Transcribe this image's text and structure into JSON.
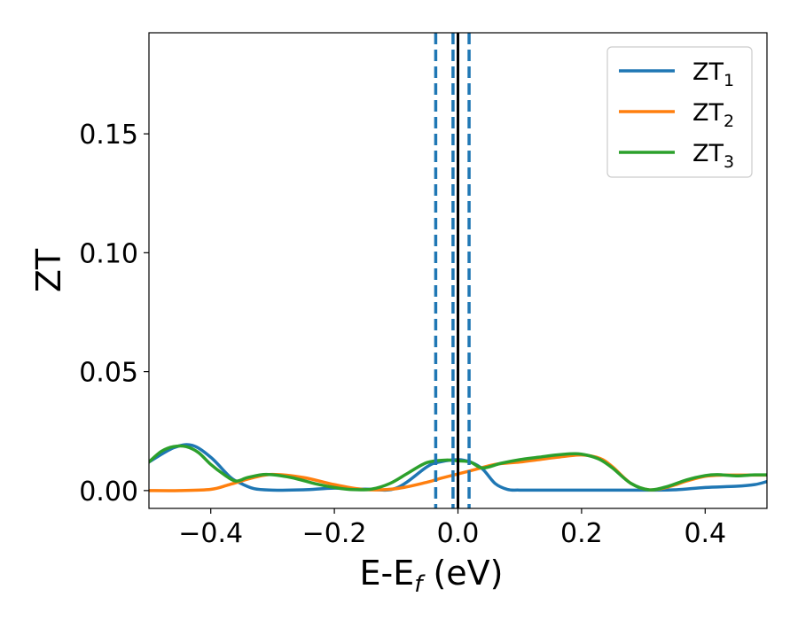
{
  "chart_data": {
    "type": "line",
    "xlabel": {
      "main": "E-E",
      "sub": "f",
      "unit": " (eV)"
    },
    "ylabel": "ZT",
    "xlim": [
      -0.5,
      0.5
    ],
    "ylim": [
      -0.0075,
      0.1925
    ],
    "xticks": [
      -0.4,
      -0.2,
      0.0,
      0.2,
      0.4
    ],
    "xtick_labels": [
      "−0.4",
      "−0.2",
      "0.0",
      "0.2",
      "0.4"
    ],
    "yticks": [
      0.0,
      0.05,
      0.1,
      0.15
    ],
    "ytick_labels": [
      "0.00",
      "0.05",
      "0.10",
      "0.15"
    ],
    "grid": false,
    "legend_position": "top-right",
    "series": [
      {
        "name": "ZT",
        "name_sub": "1",
        "color": "#1f77b4",
        "x": [
          -0.5,
          -0.46,
          -0.43,
          -0.4,
          -0.37,
          -0.355,
          -0.33,
          -0.3,
          -0.25,
          -0.2,
          -0.15,
          -0.1,
          -0.05,
          -0.03,
          0.0,
          0.02,
          0.04,
          0.06,
          0.08,
          0.1,
          0.15,
          0.2,
          0.25,
          0.3,
          0.35,
          0.4,
          0.45,
          0.48,
          0.5
        ],
        "y": [
          0.012,
          0.018,
          0.019,
          0.014,
          0.006,
          0.0035,
          0.0008,
          0.0002,
          0.0003,
          0.001,
          0.0006,
          0.001,
          0.01,
          0.012,
          0.013,
          0.012,
          0.009,
          0.003,
          0.0005,
          0.0002,
          0.0002,
          0.0002,
          0.0002,
          0.0002,
          0.0003,
          0.0013,
          0.0018,
          0.0025,
          0.0038
        ]
      },
      {
        "name": "ZT",
        "name_sub": "2",
        "color": "#ff7f0e",
        "x": [
          -0.5,
          -0.45,
          -0.4,
          -0.37,
          -0.33,
          -0.3,
          -0.25,
          -0.2,
          -0.15,
          -0.1,
          -0.05,
          -0.03,
          0.0,
          0.03,
          0.06,
          0.1,
          0.13,
          0.16,
          0.2,
          0.23,
          0.25,
          0.28,
          0.31,
          0.34,
          0.37,
          0.4,
          0.43,
          0.47,
          0.5
        ],
        "y": [
          0.0,
          0.0,
          0.0005,
          0.0025,
          0.0055,
          0.0068,
          0.0055,
          0.0025,
          0.0004,
          0.0008,
          0.0035,
          0.005,
          0.007,
          0.009,
          0.011,
          0.012,
          0.013,
          0.014,
          0.015,
          0.0135,
          0.01,
          0.003,
          0.0003,
          0.0015,
          0.004,
          0.006,
          0.0065,
          0.0065,
          0.0065
        ]
      },
      {
        "name": "ZT",
        "name_sub": "3",
        "color": "#2ca02c",
        "x": [
          -0.5,
          -0.48,
          -0.46,
          -0.44,
          -0.42,
          -0.4,
          -0.38,
          -0.36,
          -0.34,
          -0.31,
          -0.27,
          -0.23,
          -0.2,
          -0.17,
          -0.14,
          -0.11,
          -0.08,
          -0.05,
          -0.02,
          0.0,
          0.02,
          0.04,
          0.07,
          0.1,
          0.13,
          0.16,
          0.19,
          0.21,
          0.23,
          0.25,
          0.28,
          0.31,
          0.34,
          0.37,
          0.4,
          0.42,
          0.45,
          0.48,
          0.5
        ],
        "y": [
          0.012,
          0.0165,
          0.0185,
          0.0185,
          0.016,
          0.011,
          0.007,
          0.004,
          0.0055,
          0.0068,
          0.0055,
          0.0028,
          0.0013,
          0.0004,
          0.0006,
          0.003,
          0.0075,
          0.0118,
          0.0128,
          0.0125,
          0.012,
          0.0095,
          0.0115,
          0.013,
          0.014,
          0.015,
          0.0155,
          0.0148,
          0.013,
          0.0095,
          0.003,
          0.0003,
          0.0018,
          0.0045,
          0.0063,
          0.0067,
          0.0062,
          0.0066,
          0.0066
        ]
      }
    ],
    "vlines": [
      {
        "x": -0.036,
        "style": "dashed",
        "color": "#1f77b4"
      },
      {
        "x": -0.008,
        "style": "dashed",
        "color": "#1f77b4"
      },
      {
        "x": 0.0,
        "style": "solid",
        "color": "#000000"
      },
      {
        "x": 0.018,
        "style": "dashed",
        "color": "#1f77b4"
      }
    ]
  }
}
